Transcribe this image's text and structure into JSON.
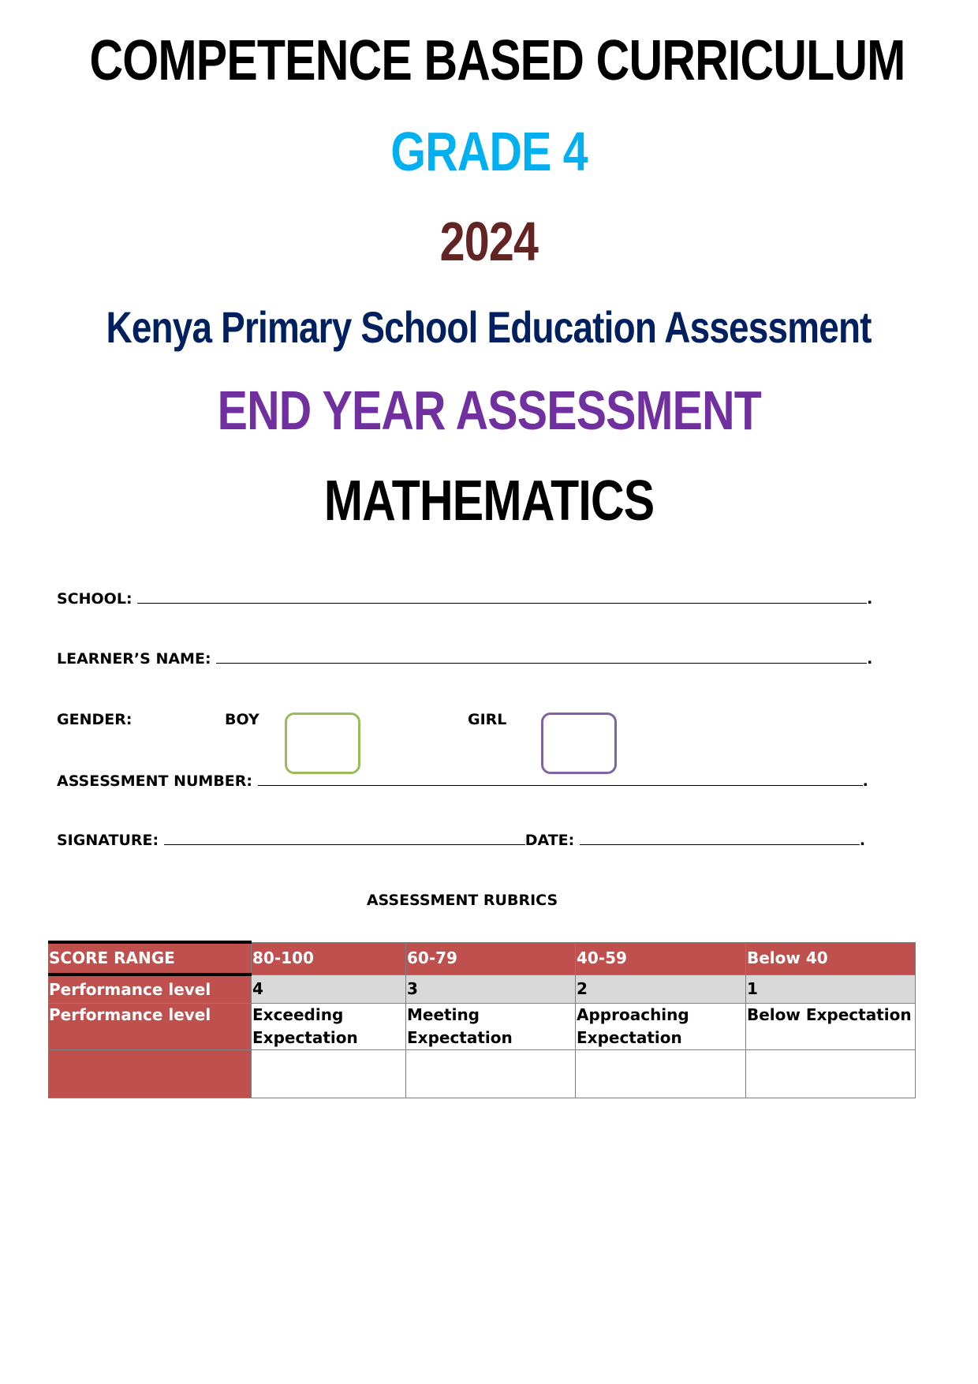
{
  "header": {
    "curriculum": "COMPETENCE BASED CURRICULUM",
    "grade": "GRADE 4",
    "year": "2024",
    "assessment_body": "Kenya Primary School Education Assessment",
    "assessment_type": "END YEAR ASSESSMENT",
    "subject": "MATHEMATICS"
  },
  "colors": {
    "grade": "#00b0f0",
    "year": "#632523",
    "body": "#002060",
    "type": "#7030a0",
    "boy_box": "#9bbb59",
    "girl_box": "#8064a2",
    "table_header": "#c0504d"
  },
  "form": {
    "school_label": "SCHOOL:",
    "learner_label": "LEARNER’S NAME:",
    "gender_label": "GENDER:",
    "boy_label": "BOY",
    "girl_label": "GIRL",
    "assessment_number_label": "ASSESSMENT NUMBER:",
    "signature_label": "SIGNATURE:",
    "date_label": "DATE:",
    "end_mark": "."
  },
  "rubrics": {
    "title": "ASSESSMENT RUBRICS",
    "rows": [
      {
        "label": "SCORE RANGE",
        "cells": [
          "80-100",
          "60-79",
          "40-59",
          "Below 40"
        ]
      },
      {
        "label": "Performance level",
        "cells": [
          "4",
          "3",
          "2",
          "1"
        ]
      },
      {
        "label": "Performance level",
        "cells": [
          "Exceeding Expectation",
          "Meeting Expectation",
          "Approaching Expectation",
          "Below Expectation"
        ]
      },
      {
        "label": "",
        "cells": [
          "",
          "",
          "",
          ""
        ]
      }
    ]
  }
}
